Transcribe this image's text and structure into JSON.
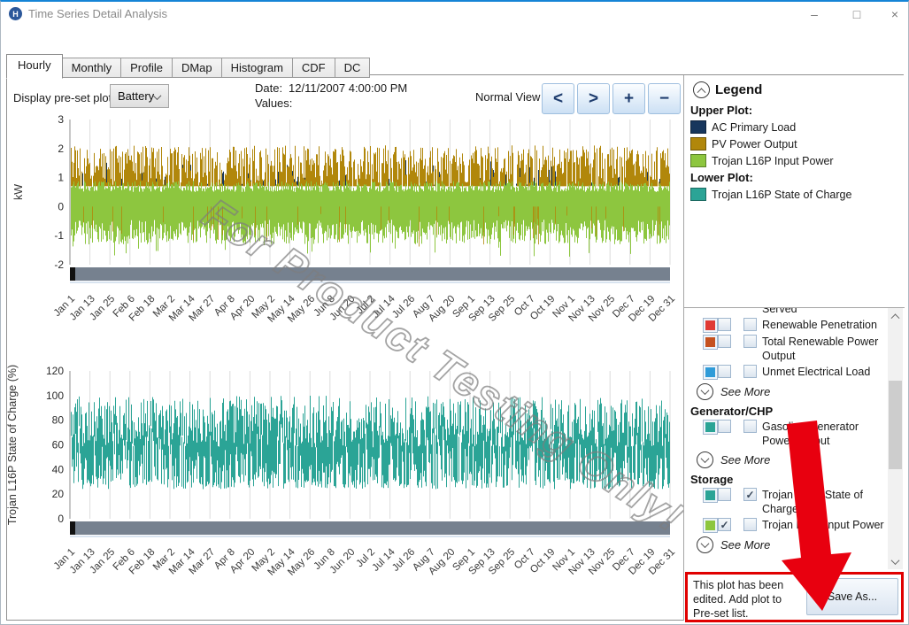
{
  "window": {
    "title": "Time Series Detail Analysis",
    "app_icon_letter": "H",
    "controls": {
      "minimize": "–",
      "maximize": "□",
      "close": "×"
    }
  },
  "tabs": [
    {
      "label": "Hourly",
      "active": true
    },
    {
      "label": "Monthly",
      "active": false
    },
    {
      "label": "Profile",
      "active": false
    },
    {
      "label": "DMap",
      "active": false
    },
    {
      "label": "Histogram",
      "active": false
    },
    {
      "label": "CDF",
      "active": false
    },
    {
      "label": "DC",
      "active": false
    }
  ],
  "toolbar": {
    "preset_label": "Display pre-set plot:",
    "preset_value": "Battery",
    "date_label": "Date:",
    "date_value": "12/11/2007 4:00:00 PM",
    "values_label": "Values:",
    "view_mode": "Normal View",
    "nav_buttons": [
      {
        "name": "step-back",
        "glyph": "<"
      },
      {
        "name": "step-forward",
        "glyph": ">"
      },
      {
        "name": "zoom-in",
        "glyph": "+"
      },
      {
        "name": "zoom-out",
        "glyph": "−"
      }
    ]
  },
  "watermark": "For Product Testing Only!",
  "legend_panel": {
    "title": "Legend",
    "upper_label": "Upper Plot:",
    "upper_items": [
      {
        "label": "AC Primary Load",
        "color": "#17365D"
      },
      {
        "label": "PV Power Output",
        "color": "#B1870B"
      },
      {
        "label": "Trojan L16P Input Power",
        "color": "#8DC63F"
      }
    ],
    "lower_label": "Lower Plot:",
    "lower_items": [
      {
        "label": "Trojan L16P State of Charge",
        "color": "#2BA496"
      }
    ]
  },
  "series_list": {
    "clipped_item_text": "Served",
    "groups": [
      {
        "header": "",
        "see_more": "See More",
        "items": [
          {
            "label": "Renewable Penetration",
            "color": "#E03A35",
            "upper_checked": false,
            "lower_checked": false
          },
          {
            "label": "Total Renewable Power Output",
            "color": "#C5511F",
            "upper_checked": false,
            "lower_checked": false
          },
          {
            "label": "Unmet Electrical Load",
            "color": "#2F9BD8",
            "upper_checked": false,
            "lower_checked": false
          }
        ]
      },
      {
        "header": "Generator/CHP",
        "see_more": "See More",
        "items": [
          {
            "label": "Gasoline Generator Power Output",
            "color": "#2BA496",
            "upper_checked": false,
            "lower_checked": false
          }
        ]
      },
      {
        "header": "Storage",
        "see_more": "See More",
        "items": [
          {
            "label": "Trojan L16P State of Charge",
            "color": "#2BA496",
            "upper_checked": false,
            "lower_checked": true
          },
          {
            "label": "Trojan L16P Input Power",
            "color": "#8DC63F",
            "upper_checked": true,
            "lower_checked": false
          }
        ]
      }
    ]
  },
  "footer": {
    "message": "This plot has been edited. Add plot to Pre-set list.",
    "save_button": "Save As...",
    "highlight_color": "#E00000",
    "arrow_color": "#E8000F"
  },
  "chart_data": [
    {
      "type": "area",
      "title": "",
      "ylabel": "kW",
      "ylim": [
        -2,
        3
      ],
      "yticks": [
        3,
        2,
        1,
        0,
        -1,
        -2
      ],
      "grid": "vertical-only",
      "x_ticks": [
        "Jan 1",
        "Jan 13",
        "Jan 25",
        "Feb 6",
        "Feb 18",
        "Mar 2",
        "Mar 14",
        "Mar 27",
        "Apr 8",
        "Apr 20",
        "May 2",
        "May 14",
        "May 26",
        "Jun 8",
        "Jun 20",
        "Jul 2",
        "Jul 14",
        "Jul 26",
        "Aug 7",
        "Aug 20",
        "Sep 1",
        "Sep 13",
        "Sep 25",
        "Oct 7",
        "Oct 19",
        "Nov 1",
        "Nov 13",
        "Nov 25",
        "Dec 7",
        "Dec 19",
        "Dec 31"
      ],
      "series": [
        {
          "name": "AC Primary Load",
          "color": "#17365D",
          "approx_range_kw": [
            0.7,
            1.7
          ]
        },
        {
          "name": "PV Power Output",
          "color": "#B1870B",
          "approx_range_kw": [
            0,
            2.1
          ]
        },
        {
          "name": "Trojan L16P Input Power",
          "color": "#8DC63F",
          "approx_range_kw": [
            -1.9,
            0.9
          ]
        }
      ]
    },
    {
      "type": "line",
      "title": "",
      "ylabel": "Trojan L16P State of Charge (%)",
      "ylim": [
        0,
        120
      ],
      "yticks": [
        120,
        100,
        80,
        60,
        40,
        20,
        0
      ],
      "grid": "vertical-only",
      "x_ticks": [
        "Jan 1",
        "Jan 13",
        "Jan 25",
        "Feb 6",
        "Feb 18",
        "Mar 2",
        "Mar 14",
        "Mar 27",
        "Apr 8",
        "Apr 20",
        "May 2",
        "May 14",
        "May 26",
        "Jun 8",
        "Jun 20",
        "Jul 2",
        "Jul 14",
        "Jul 26",
        "Aug 7",
        "Aug 20",
        "Sep 1",
        "Sep 13",
        "Sep 25",
        "Oct 7",
        "Oct 19",
        "Nov 1",
        "Nov 13",
        "Nov 25",
        "Dec 7",
        "Dec 19",
        "Dec 31"
      ],
      "series": [
        {
          "name": "Trojan L16P State of Charge",
          "color": "#2BA496",
          "approx_range_pct": [
            25,
            100
          ]
        }
      ]
    }
  ]
}
